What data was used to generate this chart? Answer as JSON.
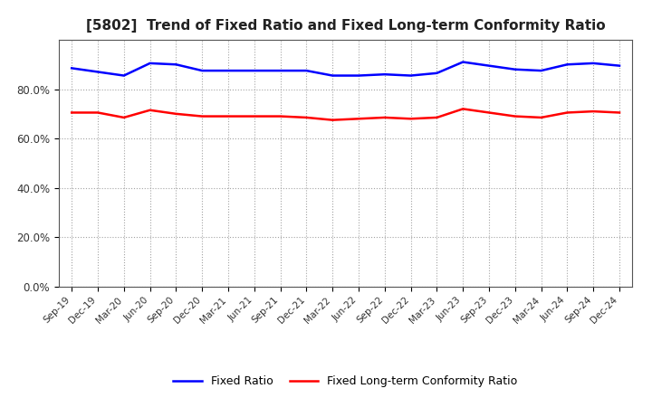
{
  "title": "[5802]  Trend of Fixed Ratio and Fixed Long-term Conformity Ratio",
  "x_labels": [
    "Sep-19",
    "Dec-19",
    "Mar-20",
    "Jun-20",
    "Sep-20",
    "Dec-20",
    "Mar-21",
    "Jun-21",
    "Sep-21",
    "Dec-21",
    "Mar-22",
    "Jun-22",
    "Sep-22",
    "Dec-22",
    "Mar-23",
    "Jun-23",
    "Sep-23",
    "Dec-23",
    "Mar-24",
    "Jun-24",
    "Sep-24",
    "Dec-24"
  ],
  "fixed_ratio": [
    88.5,
    87.0,
    85.5,
    90.5,
    90.0,
    87.5,
    87.5,
    87.5,
    87.5,
    87.5,
    85.5,
    85.5,
    86.0,
    85.5,
    86.5,
    91.0,
    89.5,
    88.0,
    87.5,
    90.0,
    90.5,
    89.5
  ],
  "fixed_lt_ratio": [
    70.5,
    70.5,
    68.5,
    71.5,
    70.0,
    69.0,
    69.0,
    69.0,
    69.0,
    68.5,
    67.5,
    68.0,
    68.5,
    68.0,
    68.5,
    72.0,
    70.5,
    69.0,
    68.5,
    70.5,
    71.0,
    70.5
  ],
  "fixed_ratio_color": "#0000ff",
  "fixed_lt_ratio_color": "#ff0000",
  "ylim": [
    0,
    100
  ],
  "yticks": [
    0,
    20,
    40,
    60,
    80
  ],
  "ytick_labels": [
    "0.0%",
    "20.0%",
    "40.0%",
    "60.0%",
    "80.0%"
  ],
  "background_color": "#ffffff",
  "plot_bg_color": "#ffffff",
  "grid_color": "#999999",
  "legend_fixed": "Fixed Ratio",
  "legend_lt": "Fixed Long-term Conformity Ratio",
  "line_width": 1.8
}
